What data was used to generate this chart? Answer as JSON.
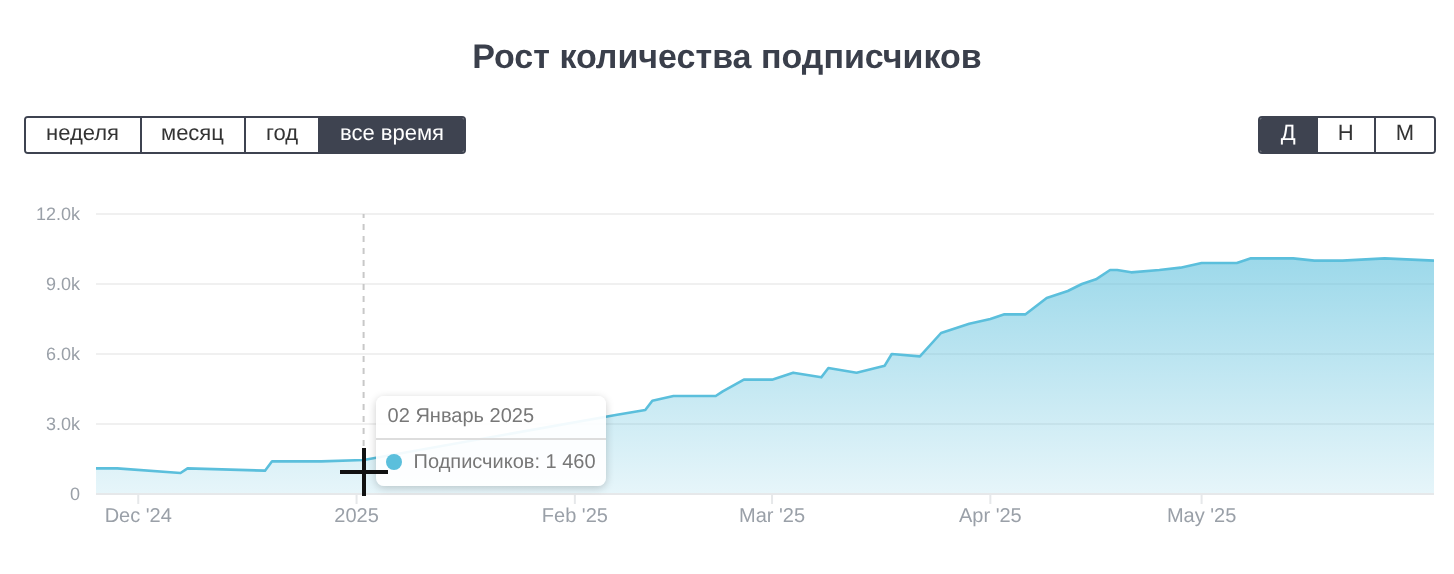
{
  "chart_data": {
    "type": "area",
    "title": "Рост количества подписчиков",
    "x": [
      "2024-11-25",
      "2024-11-28",
      "2024-12-07",
      "2024-12-08",
      "2024-12-19",
      "2024-12-20",
      "2024-12-27",
      "2025-01-02",
      "2025-01-20",
      "2025-01-26",
      "2025-01-31",
      "2025-02-07",
      "2025-02-11",
      "2025-02-12",
      "2025-02-15",
      "2025-02-21",
      "2025-02-22",
      "2025-02-25",
      "2025-03-01",
      "2025-03-04",
      "2025-03-08",
      "2025-03-09",
      "2025-03-13",
      "2025-03-17",
      "2025-03-18",
      "2025-03-22",
      "2025-03-25",
      "2025-03-29",
      "2025-04-01",
      "2025-04-03",
      "2025-04-06",
      "2025-04-09",
      "2025-04-12",
      "2025-04-14",
      "2025-04-16",
      "2025-04-18",
      "2025-04-19",
      "2025-04-21",
      "2025-04-25",
      "2025-04-28",
      "2025-05-01",
      "2025-05-06",
      "2025-05-08",
      "2025-05-14",
      "2025-05-17",
      "2025-05-21",
      "2025-05-27",
      "2025-06-03"
    ],
    "series": [
      {
        "color": "#5bbfdc",
        "values": [
          1100,
          1100,
          900,
          1100,
          1000,
          1400,
          1400,
          1460,
          null,
          null,
          null,
          3400,
          3600,
          4000,
          4200,
          4200,
          4400,
          4900,
          4900,
          5200,
          5000,
          5400,
          5200,
          5500,
          6000,
          5900,
          6900,
          7300,
          7500,
          7700,
          7700,
          8400,
          8700,
          9000,
          9200,
          9600,
          9600,
          9500,
          9600,
          9700,
          9900,
          9900,
          10100,
          10100,
          10000,
          10000,
          10100,
          10000
        ]
      }
    ],
    "xlim": [
      "2024-11-25",
      "2025-06-03"
    ],
    "xticks": [
      {
        "value": "2024-12-01",
        "label": "Dec '24"
      },
      {
        "value": "2025-01-01",
        "label": "2025"
      },
      {
        "value": "2025-02-01",
        "label": "Feb '25"
      },
      {
        "value": "2025-03-01",
        "label": "Mar '25"
      },
      {
        "value": "2025-04-01",
        "label": "Apr '25"
      },
      {
        "value": "2025-05-01",
        "label": "May '25"
      }
    ],
    "ylim": [
      0,
      12000
    ],
    "yticks": [
      0,
      {
        "value": 3000,
        "label": "3.0k"
      },
      {
        "value": 6000,
        "label": "6.0k"
      },
      {
        "value": 9000,
        "label": "9.0k"
      },
      {
        "value": 12000,
        "label": "12.0k"
      }
    ],
    "grid": "y",
    "legend": false,
    "marker": "none",
    "ref_lines": [
      {
        "axis": "x",
        "value": "2025-01-02",
        "color": "#c8c8c8",
        "line_style": "dashed"
      }
    ],
    "annotations": [
      {
        "text": "02 Январь 2025",
        "x": "2025-01-02",
        "y": 1460
      },
      {
        "text": "Подписчиков: 1 460",
        "x": "2025-01-02",
        "y": 1460
      },
      "неделя",
      "месяц",
      "год",
      "все время",
      "Д",
      "Н",
      "М"
    ]
  }
}
